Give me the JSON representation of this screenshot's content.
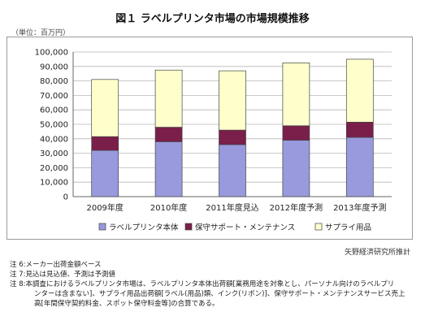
{
  "title": "図１ ラベルプリンタ市場の市場規模推移",
  "unit_label": "（単位：百万円）",
  "chart_data": {
    "type": "bar",
    "stacked": true,
    "categories": [
      "2009年度",
      "2010年度",
      "2011年度見込",
      "2012年度予測",
      "2013年度予測"
    ],
    "series": [
      {
        "name": "ラベルプリンタ本体",
        "color": "#9999dd",
        "values": [
          32000,
          38000,
          36000,
          39000,
          41000
        ]
      },
      {
        "name": "保守サポート・メンテナンス",
        "color": "#7a1f4a",
        "values": [
          9500,
          10000,
          10000,
          10000,
          10500
        ]
      },
      {
        "name": "サプライ用品",
        "color": "#ffffcc",
        "values": [
          39500,
          39500,
          41000,
          43500,
          43500
        ]
      }
    ],
    "ylim": [
      0,
      100000
    ],
    "yticks": [
      "0",
      "10,000",
      "20,000",
      "30,000",
      "40,000",
      "50,000",
      "60,000",
      "70,000",
      "80,000",
      "90,000",
      "100,000"
    ],
    "grid": true,
    "legend_position": "bottom"
  },
  "source": "矢野経済研究所推計",
  "notes": [
    "注 6:メーカー出荷金額ベース",
    "注 7:見込は見込値、予測は予測値",
    "注 8:本調査におけるラベルプリンタ市場は、ラベルプリンタ本体出荷額[業務用途を対象とし、パーソナル向けのラベルプリ",
    "ンターは含まない]、サプライ用品出荷額[ラベル(用品)類、インク(リボン)]、保守サポート・メンテナンスサービス売上",
    "高[年間保守契約料金、スポット保守料金等]の合算である。"
  ]
}
